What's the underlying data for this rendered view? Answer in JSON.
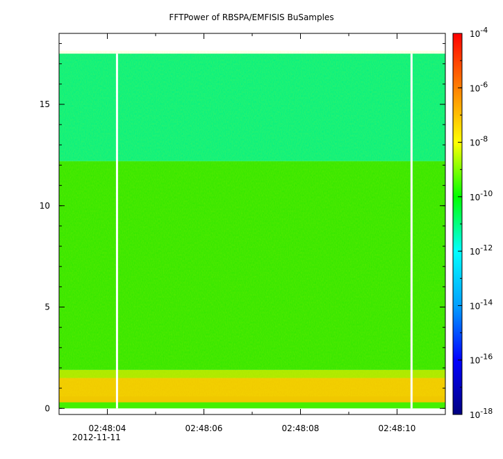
{
  "chart_data": {
    "type": "heatmap",
    "title": "FFTPower of RBSPA/EMFISIS  BuSamples",
    "xlabel": "",
    "ylabel": "",
    "x": {
      "start": "02:48:03.0",
      "end": "02:48:11.0",
      "tick_labels": [
        "02:48:04",
        "02:48:06",
        "02:48:08",
        "02:48:10"
      ],
      "date_label": "2012-11-11"
    },
    "y": {
      "range": [
        -0.3,
        18.5
      ],
      "tick_values": [
        0,
        5,
        10,
        15
      ],
      "tick_labels": [
        "0",
        "5",
        "10",
        "15"
      ]
    },
    "colorbar": {
      "scale": "log",
      "range": [
        1e-18,
        0.0001
      ],
      "tick_labels": [
        "10-4",
        "10-6",
        "10-8",
        "10-10",
        "10-12",
        "10-14",
        "10-16",
        "10-18"
      ],
      "colormap": [
        "#000080",
        "#0000ff",
        "#00a0ff",
        "#00ffff",
        "#00ff00",
        "#ffff00",
        "#ff8000",
        "#ff0000"
      ]
    },
    "spectrogram_bands": [
      {
        "freq_min": 0.0,
        "freq_max": 0.3,
        "level": "1e-10",
        "color": "#44f000"
      },
      {
        "freq_min": 0.3,
        "freq_max": 1.5,
        "level": "1e-8",
        "color": "#f0c800"
      },
      {
        "freq_min": 1.5,
        "freq_max": 1.9,
        "level": "1e-9",
        "color": "#a8e800"
      },
      {
        "freq_min": 1.9,
        "freq_max": 12.2,
        "level": "1e-10",
        "color": "#2ee600"
      },
      {
        "freq_min": 12.2,
        "freq_max": 17.5,
        "level": "1e-12",
        "color": "#00f085"
      }
    ],
    "data_gaps": [
      "02:48:04.2",
      "02:48:10.3"
    ]
  }
}
